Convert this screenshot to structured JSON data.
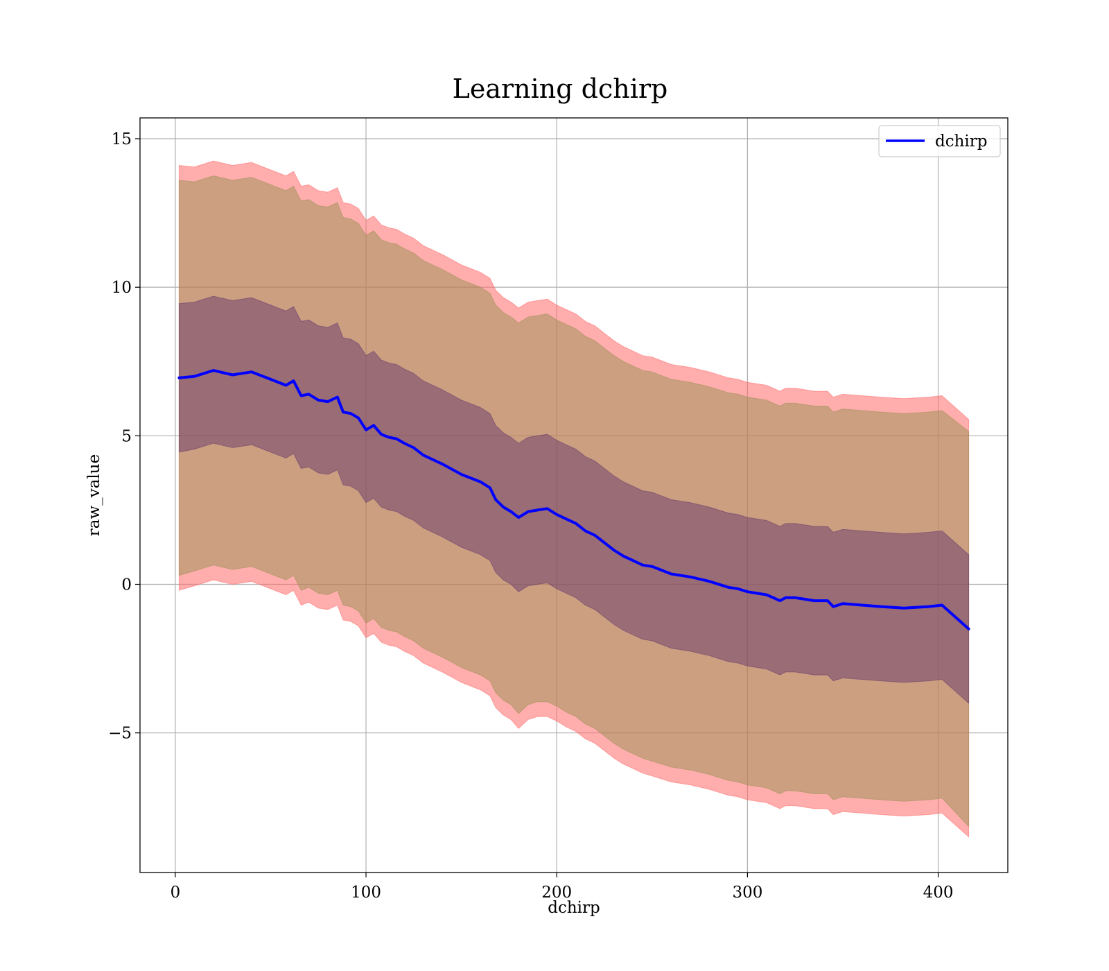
{
  "chart_data": {
    "type": "line",
    "title": "Learning dchirp",
    "xlabel": "dchirp",
    "ylabel": "raw_value",
    "xlim": [
      -18.5,
      436.5
    ],
    "ylim": [
      -9.7,
      15.7
    ],
    "x_ticks": [
      0,
      100,
      200,
      300,
      400
    ],
    "y_ticks": [
      -5,
      0,
      5,
      10,
      15
    ],
    "x_tick_labels": [
      "0",
      "100",
      "200",
      "300",
      "400"
    ],
    "y_tick_labels": [
      "−5",
      "0",
      "5",
      "10",
      "15"
    ],
    "grid": true,
    "legend_position": "top-right",
    "x": [
      2,
      10,
      20,
      30,
      40,
      50,
      58,
      62,
      66,
      70,
      75,
      80,
      85,
      88,
      92,
      96,
      100,
      104,
      108,
      112,
      116,
      120,
      125,
      130,
      140,
      150,
      160,
      165,
      168,
      172,
      176,
      180,
      185,
      190,
      195,
      200,
      205,
      210,
      215,
      220,
      225,
      230,
      235,
      240,
      245,
      250,
      260,
      270,
      280,
      290,
      295,
      300,
      305,
      310,
      317,
      320,
      325,
      330,
      335,
      342,
      345,
      350,
      360,
      370,
      382,
      395,
      402,
      416
    ],
    "series": [
      {
        "name": "dchirp",
        "color": "#0000ff",
        "values": [
          6.95,
          7.0,
          7.2,
          7.05,
          7.15,
          6.9,
          6.7,
          6.85,
          6.35,
          6.4,
          6.2,
          6.15,
          6.3,
          5.8,
          5.75,
          5.6,
          5.2,
          5.35,
          5.05,
          4.95,
          4.9,
          4.75,
          4.6,
          4.35,
          4.05,
          3.7,
          3.45,
          3.25,
          2.85,
          2.6,
          2.45,
          2.25,
          2.45,
          2.5,
          2.55,
          2.35,
          2.2,
          2.05,
          1.8,
          1.65,
          1.4,
          1.15,
          0.95,
          0.8,
          0.65,
          0.6,
          0.35,
          0.25,
          0.1,
          -0.1,
          -0.15,
          -0.25,
          -0.3,
          -0.35,
          -0.55,
          -0.45,
          -0.45,
          -0.5,
          -0.55,
          -0.55,
          -0.75,
          -0.65,
          -0.7,
          -0.75,
          -0.8,
          -0.75,
          -0.7,
          -1.5
        ]
      }
    ],
    "bands": [
      {
        "color": "#ff6a6a",
        "opacity": 0.55,
        "lower": [
          -0.2,
          -0.05,
          0.15,
          0.0,
          0.1,
          -0.15,
          -0.35,
          -0.2,
          -0.7,
          -0.6,
          -0.8,
          -0.85,
          -0.7,
          -1.2,
          -1.25,
          -1.4,
          -1.8,
          -1.65,
          -1.95,
          -2.05,
          -2.1,
          -2.25,
          -2.4,
          -2.65,
          -2.95,
          -3.3,
          -3.55,
          -3.75,
          -4.15,
          -4.4,
          -4.55,
          -4.85,
          -4.55,
          -4.45,
          -4.45,
          -4.6,
          -4.8,
          -4.95,
          -5.2,
          -5.35,
          -5.6,
          -5.85,
          -6.05,
          -6.2,
          -6.35,
          -6.45,
          -6.65,
          -6.75,
          -6.9,
          -7.1,
          -7.15,
          -7.25,
          -7.3,
          -7.35,
          -7.55,
          -7.45,
          -7.45,
          -7.5,
          -7.55,
          -7.55,
          -7.75,
          -7.65,
          -7.7,
          -7.75,
          -7.8,
          -7.75,
          -7.7,
          -8.5
        ],
        "upper": [
          14.1,
          14.05,
          14.25,
          14.1,
          14.2,
          13.95,
          13.75,
          13.9,
          13.4,
          13.45,
          13.25,
          13.2,
          13.35,
          12.85,
          12.8,
          12.65,
          12.25,
          12.4,
          12.1,
          12.0,
          11.95,
          11.8,
          11.65,
          11.4,
          11.1,
          10.75,
          10.5,
          10.3,
          9.9,
          9.65,
          9.5,
          9.3,
          9.5,
          9.55,
          9.6,
          9.4,
          9.25,
          9.1,
          8.85,
          8.7,
          8.45,
          8.2,
          8.0,
          7.85,
          7.7,
          7.65,
          7.4,
          7.3,
          7.15,
          6.95,
          6.9,
          6.8,
          6.75,
          6.7,
          6.5,
          6.6,
          6.6,
          6.55,
          6.5,
          6.5,
          6.3,
          6.4,
          6.35,
          6.3,
          6.25,
          6.3,
          6.35,
          5.55
        ]
      },
      {
        "color": "#8f8f4a",
        "opacity": 0.45,
        "lower": [
          0.3,
          0.45,
          0.65,
          0.5,
          0.6,
          0.35,
          0.15,
          0.3,
          -0.2,
          -0.1,
          -0.3,
          -0.35,
          -0.2,
          -0.7,
          -0.75,
          -0.9,
          -1.3,
          -1.15,
          -1.45,
          -1.55,
          -1.6,
          -1.75,
          -1.9,
          -2.15,
          -2.45,
          -2.8,
          -3.05,
          -3.25,
          -3.65,
          -3.9,
          -4.05,
          -4.35,
          -4.05,
          -3.95,
          -3.95,
          -4.1,
          -4.3,
          -4.45,
          -4.7,
          -4.85,
          -5.1,
          -5.35,
          -5.55,
          -5.7,
          -5.85,
          -5.95,
          -6.15,
          -6.25,
          -6.4,
          -6.6,
          -6.65,
          -6.75,
          -6.8,
          -6.85,
          -7.05,
          -6.95,
          -6.95,
          -7.0,
          -7.05,
          -7.05,
          -7.25,
          -7.15,
          -7.2,
          -7.25,
          -7.3,
          -7.25,
          -7.2,
          -8.15
        ],
        "upper": [
          13.6,
          13.55,
          13.75,
          13.6,
          13.7,
          13.45,
          13.25,
          13.4,
          12.9,
          12.95,
          12.75,
          12.7,
          12.85,
          12.35,
          12.3,
          12.15,
          11.75,
          11.9,
          11.6,
          11.5,
          11.45,
          11.3,
          11.15,
          10.9,
          10.6,
          10.25,
          10.0,
          9.8,
          9.4,
          9.15,
          9.0,
          8.8,
          9.0,
          9.05,
          9.1,
          8.9,
          8.75,
          8.6,
          8.35,
          8.2,
          7.95,
          7.7,
          7.5,
          7.35,
          7.2,
          7.15,
          6.9,
          6.8,
          6.65,
          6.45,
          6.4,
          6.3,
          6.25,
          6.2,
          6.0,
          6.1,
          6.1,
          6.05,
          6.0,
          6.0,
          5.8,
          5.9,
          5.85,
          5.8,
          5.75,
          5.8,
          5.85,
          5.15
        ]
      },
      {
        "color": "#5a2f6a",
        "opacity": 0.45,
        "lower": [
          4.45,
          4.55,
          4.75,
          4.6,
          4.7,
          4.45,
          4.25,
          4.4,
          3.9,
          3.95,
          3.75,
          3.7,
          3.85,
          3.35,
          3.3,
          3.15,
          2.75,
          2.9,
          2.6,
          2.5,
          2.45,
          2.3,
          2.15,
          1.9,
          1.6,
          1.25,
          1.0,
          0.8,
          0.4,
          0.15,
          0.0,
          -0.25,
          -0.05,
          0.0,
          0.05,
          -0.15,
          -0.3,
          -0.45,
          -0.7,
          -0.85,
          -1.1,
          -1.35,
          -1.55,
          -1.7,
          -1.85,
          -1.9,
          -2.15,
          -2.25,
          -2.4,
          -2.6,
          -2.65,
          -2.75,
          -2.8,
          -2.85,
          -3.05,
          -2.95,
          -2.95,
          -3.0,
          -3.05,
          -3.05,
          -3.25,
          -3.15,
          -3.2,
          -3.25,
          -3.3,
          -3.25,
          -3.2,
          -4.0
        ],
        "upper": [
          9.45,
          9.5,
          9.7,
          9.55,
          9.65,
          9.4,
          9.2,
          9.35,
          8.85,
          8.9,
          8.7,
          8.65,
          8.8,
          8.3,
          8.25,
          8.1,
          7.7,
          7.85,
          7.55,
          7.45,
          7.4,
          7.25,
          7.1,
          6.85,
          6.55,
          6.2,
          5.95,
          5.75,
          5.35,
          5.1,
          4.95,
          4.75,
          4.95,
          5.0,
          5.05,
          4.85,
          4.7,
          4.55,
          4.3,
          4.15,
          3.9,
          3.65,
          3.45,
          3.3,
          3.15,
          3.1,
          2.85,
          2.75,
          2.6,
          2.4,
          2.35,
          2.25,
          2.2,
          2.15,
          1.95,
          2.05,
          2.05,
          2.0,
          1.95,
          1.95,
          1.75,
          1.85,
          1.8,
          1.75,
          1.7,
          1.75,
          1.8,
          1.0
        ]
      }
    ]
  }
}
